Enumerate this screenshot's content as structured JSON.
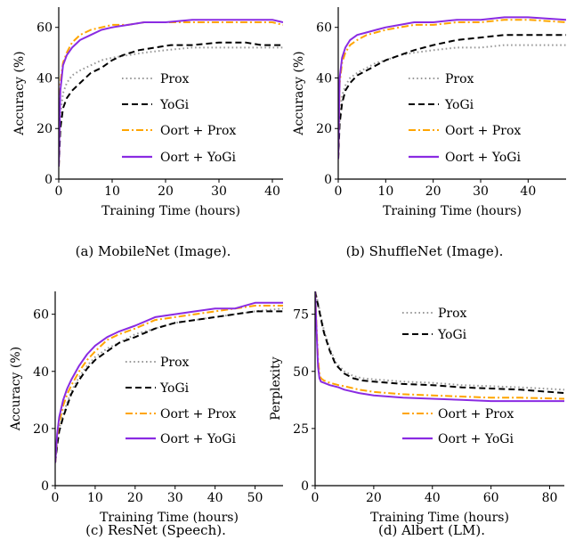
{
  "colors": {
    "prox": "#999999",
    "yogi": "#000000",
    "oort_prox": "#ffa500",
    "oort_yogi": "#8a2be2"
  },
  "chart_data": [
    {
      "type": "line",
      "caption": "(a)  MobileNet (Image).",
      "xlabel": "Training Time (hours)",
      "ylabel": "Accuracy (%)",
      "xlim": [
        0,
        42
      ],
      "ylim": [
        0,
        68
      ],
      "xticks": [
        0,
        10,
        20,
        30,
        40
      ],
      "yticks": [
        0,
        20,
        40,
        60
      ],
      "grid": false,
      "legend_position": "right",
      "series": [
        {
          "name": "Prox",
          "style": "dotted",
          "color_key": "prox",
          "x": [
            0,
            0.3,
            0.8,
            1.5,
            2.5,
            4,
            6,
            8,
            10,
            13,
            16,
            20,
            25,
            30,
            35,
            42
          ],
          "y": [
            5,
            25,
            34,
            38,
            41,
            43,
            45,
            47,
            48,
            49,
            50,
            51,
            52,
            52,
            52,
            52
          ]
        },
        {
          "name": "YoGi",
          "style": "dashed",
          "color_key": "yogi",
          "x": [
            0,
            0.3,
            0.8,
            1.5,
            2.5,
            4,
            6,
            8,
            10,
            12,
            15,
            18,
            21,
            25,
            30,
            35,
            38,
            42
          ],
          "y": [
            5,
            20,
            28,
            32,
            35,
            38,
            42,
            44,
            47,
            49,
            51,
            52,
            53,
            53,
            54,
            54,
            53,
            53
          ]
        },
        {
          "name": "Oort + Prox",
          "style": "dashdot",
          "color_key": "oort_prox",
          "x": [
            0,
            0.3,
            0.8,
            1.5,
            2.5,
            4,
            6,
            8,
            10,
            13,
            16,
            20,
            25,
            30,
            35,
            40,
            42
          ],
          "y": [
            5,
            38,
            46,
            50,
            54,
            57,
            59,
            60,
            61,
            61,
            62,
            62,
            62,
            62,
            62,
            62,
            61
          ]
        },
        {
          "name": "Oort + YoGi",
          "style": "solid",
          "color_key": "oort_yogi",
          "x": [
            0,
            0.3,
            0.8,
            1.5,
            2.5,
            4,
            6,
            8,
            10,
            13,
            16,
            20,
            25,
            30,
            35,
            40,
            42
          ],
          "y": [
            5,
            35,
            45,
            49,
            52,
            55,
            57,
            59,
            60,
            61,
            62,
            62,
            63,
            63,
            63,
            63,
            62
          ]
        }
      ]
    },
    {
      "type": "line",
      "caption": "(b)  ShuffleNet (Image).",
      "xlabel": "Training Time (hours)",
      "ylabel": "Accuracy (%)",
      "xlim": [
        0,
        48
      ],
      "ylim": [
        0,
        68
      ],
      "xticks": [
        0,
        10,
        20,
        30,
        40
      ],
      "yticks": [
        0,
        20,
        40,
        60
      ],
      "grid": false,
      "legend_position": "right",
      "series": [
        {
          "name": "Prox",
          "style": "dotted",
          "color_key": "prox",
          "x": [
            0,
            0.3,
            0.8,
            1.5,
            2.5,
            4,
            6,
            8,
            10,
            13,
            16,
            20,
            25,
            30,
            35,
            40,
            48
          ],
          "y": [
            8,
            25,
            33,
            37,
            40,
            42,
            44,
            46,
            47,
            49,
            50,
            51,
            52,
            52,
            53,
            53,
            53
          ]
        },
        {
          "name": "YoGi",
          "style": "dashed",
          "color_key": "yogi",
          "x": [
            0,
            0.3,
            0.8,
            1.5,
            2.5,
            4,
            6,
            8,
            10,
            13,
            16,
            20,
            25,
            30,
            35,
            40,
            48
          ],
          "y": [
            8,
            22,
            30,
            35,
            38,
            41,
            43,
            45,
            47,
            49,
            51,
            53,
            55,
            56,
            57,
            57,
            57
          ]
        },
        {
          "name": "Oort + Prox",
          "style": "dashdot",
          "color_key": "oort_prox",
          "x": [
            0,
            0.3,
            0.8,
            1.5,
            2.5,
            4,
            6,
            8,
            10,
            13,
            16,
            20,
            25,
            30,
            35,
            40,
            48
          ],
          "y": [
            8,
            38,
            46,
            50,
            53,
            55,
            57,
            58,
            59,
            60,
            61,
            61,
            62,
            62,
            63,
            63,
            62
          ]
        },
        {
          "name": "Oort + YoGi",
          "style": "solid",
          "color_key": "oort_yogi",
          "x": [
            0,
            0.3,
            0.8,
            1.5,
            2.5,
            4,
            6,
            8,
            10,
            13,
            16,
            20,
            25,
            30,
            35,
            40,
            48
          ],
          "y": [
            8,
            40,
            48,
            52,
            55,
            57,
            58,
            59,
            60,
            61,
            62,
            62,
            63,
            63,
            64,
            64,
            63
          ]
        }
      ]
    },
    {
      "type": "line",
      "caption": "(c)  ResNet (Speech).",
      "xlabel": "Training Time (hours)",
      "ylabel": "Accuracy (%)",
      "xlim": [
        0,
        57
      ],
      "ylim": [
        0,
        68
      ],
      "xticks": [
        0,
        10,
        20,
        30,
        40,
        50
      ],
      "yticks": [
        0,
        20,
        40,
        60
      ],
      "grid": false,
      "legend_position": "lower right",
      "series": [
        {
          "name": "Prox",
          "style": "dotted",
          "color_key": "prox",
          "x": [
            0,
            0.5,
            1,
            2,
            3,
            4,
            6,
            8,
            10,
            13,
            16,
            20,
            25,
            30,
            35,
            40,
            45,
            50,
            57
          ],
          "y": [
            8,
            15,
            20,
            25,
            29,
            33,
            38,
            42,
            45,
            48,
            50,
            53,
            55,
            57,
            58,
            59,
            60,
            61,
            62
          ]
        },
        {
          "name": "YoGi",
          "style": "dashed",
          "color_key": "yogi",
          "x": [
            0,
            0.5,
            1,
            2,
            3,
            4,
            6,
            8,
            10,
            13,
            16,
            20,
            25,
            30,
            35,
            40,
            45,
            50,
            57
          ],
          "y": [
            8,
            14,
            19,
            24,
            28,
            32,
            37,
            41,
            44,
            47,
            50,
            52,
            55,
            57,
            58,
            59,
            60,
            61,
            61
          ]
        },
        {
          "name": "Oort + Prox",
          "style": "dashdot",
          "color_key": "oort_prox",
          "x": [
            0,
            0.5,
            1,
            2,
            3,
            4,
            6,
            8,
            10,
            13,
            16,
            20,
            25,
            30,
            35,
            40,
            45,
            50,
            57
          ],
          "y": [
            8,
            17,
            22,
            28,
            32,
            35,
            40,
            44,
            47,
            51,
            53,
            55,
            58,
            59,
            60,
            61,
            62,
            63,
            63
          ]
        },
        {
          "name": "Oort + YoGi",
          "style": "solid",
          "color_key": "oort_yogi",
          "x": [
            0,
            0.5,
            1,
            2,
            3,
            4,
            6,
            8,
            10,
            13,
            16,
            20,
            25,
            30,
            35,
            40,
            45,
            50,
            57
          ],
          "y": [
            8,
            18,
            24,
            30,
            34,
            37,
            42,
            46,
            49,
            52,
            54,
            56,
            59,
            60,
            61,
            62,
            62,
            64,
            64
          ]
        }
      ]
    },
    {
      "type": "line",
      "caption": "(d)  Albert (LM).",
      "xlabel": "Training Time (hours)",
      "ylabel": "Perplexity",
      "xlim": [
        0,
        85
      ],
      "ylim": [
        0,
        85
      ],
      "xticks": [
        0,
        20,
        40,
        60,
        80
      ],
      "yticks": [
        0,
        25,
        50,
        75
      ],
      "grid": false,
      "legend_position": "split (top right, lower right)",
      "series": [
        {
          "name": "Prox",
          "style": "dotted",
          "color_key": "prox",
          "x": [
            0,
            1,
            2,
            3,
            5,
            7,
            10,
            13,
            16,
            20,
            30,
            40,
            50,
            60,
            70,
            85
          ],
          "y": [
            85,
            80,
            74,
            68,
            60,
            54,
            50,
            48,
            47,
            46.5,
            45.5,
            45,
            44,
            43.5,
            43,
            42
          ]
        },
        {
          "name": "YoGi",
          "style": "dashed",
          "color_key": "yogi",
          "x": [
            0,
            1,
            2,
            3,
            5,
            7,
            10,
            13,
            16,
            20,
            30,
            40,
            50,
            60,
            70,
            85
          ],
          "y": [
            85,
            79,
            73,
            67,
            59,
            53,
            49,
            47,
            46,
            45.5,
            44.5,
            44,
            43,
            42.5,
            42,
            40.5
          ]
        },
        {
          "name": "Oort + Prox",
          "style": "dashdot",
          "color_key": "oort_prox",
          "x": [
            0,
            0.5,
            1,
            1.5,
            2,
            3,
            5,
            8,
            10,
            15,
            20,
            30,
            40,
            50,
            60,
            70,
            85
          ],
          "y": [
            85,
            70,
            55,
            49,
            47,
            46,
            45,
            44,
            43.5,
            42,
            41,
            40,
            39.5,
            39,
            38.5,
            38.5,
            38
          ]
        },
        {
          "name": "Oort + YoGi",
          "style": "solid",
          "color_key": "oort_yogi",
          "x": [
            0,
            0.5,
            1,
            1.5,
            2,
            3,
            5,
            8,
            10,
            15,
            20,
            30,
            40,
            50,
            60,
            70,
            85
          ],
          "y": [
            85,
            68,
            52,
            47,
            45.5,
            45,
            44,
            43,
            42,
            40.5,
            39.5,
            38.5,
            38,
            37.5,
            37,
            37,
            37
          ]
        }
      ]
    }
  ]
}
